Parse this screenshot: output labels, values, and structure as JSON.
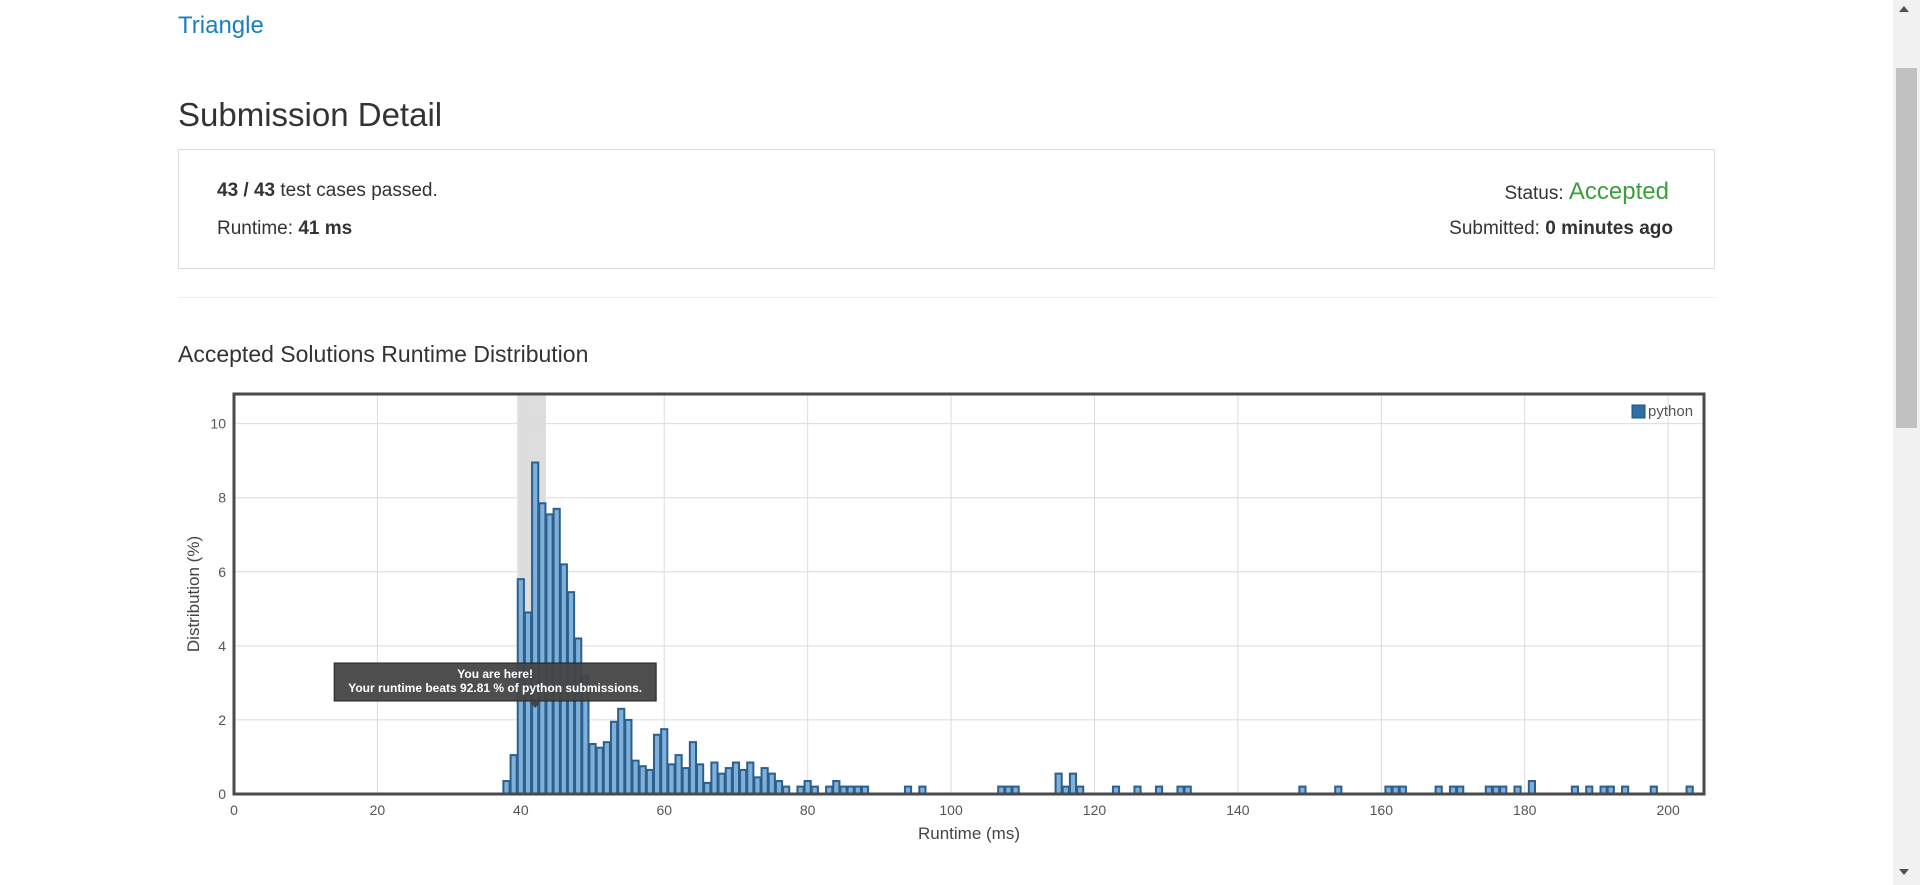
{
  "problem": {
    "title": "Triangle"
  },
  "page": {
    "title": "Submission Detail"
  },
  "submission": {
    "passed": "43 / 43",
    "passed_suffix": " test cases passed.",
    "runtime_label": "Runtime: ",
    "runtime_value": "41 ms",
    "status_label": "Status: ",
    "status_value": "Accepted",
    "submitted_label": "Submitted: ",
    "submitted_value": "0 minutes ago"
  },
  "colors": {
    "accent_link": "#1a7fc1",
    "accepted": "#3a9f3a",
    "bar_fill": "#7fb0d8",
    "bar_stroke": "#2b5f8f",
    "highlight": "#dddddd",
    "tooltip_bg": "#444444"
  },
  "chart_heading": "Accepted Solutions Runtime Distribution",
  "chart_data": {
    "type": "bar",
    "xlabel": "Runtime (ms)",
    "ylabel": "Distribution (%)",
    "xlim": [
      0,
      205
    ],
    "ylim": [
      0,
      10.8
    ],
    "x_ticks": [
      0,
      20,
      40,
      60,
      80,
      100,
      120,
      140,
      160,
      180,
      200
    ],
    "y_ticks": [
      0,
      2,
      4,
      6,
      8,
      10
    ],
    "grid": true,
    "legend_position": "top-right",
    "series": [
      {
        "name": "python",
        "x": [
          38,
          39,
          40,
          41,
          42,
          43,
          44,
          45,
          46,
          47,
          48,
          49,
          50,
          51,
          52,
          53,
          54,
          55,
          56,
          57,
          58,
          59,
          60,
          61,
          62,
          63,
          64,
          65,
          66,
          67,
          68,
          69,
          70,
          71,
          72,
          73,
          74,
          75,
          76,
          77,
          79,
          80,
          81,
          83,
          84,
          85,
          86,
          87,
          88,
          94,
          96,
          107,
          108,
          109,
          115,
          116,
          117,
          118,
          123,
          126,
          129,
          132,
          133,
          149,
          154,
          161,
          162,
          163,
          168,
          170,
          171,
          175,
          176,
          177,
          179,
          181,
          187,
          189,
          191,
          192,
          194,
          198,
          203
        ],
        "values": [
          0.35,
          1.05,
          5.8,
          4.9,
          8.95,
          7.85,
          7.55,
          7.7,
          6.2,
          5.45,
          4.2,
          3.2,
          1.35,
          1.25,
          1.4,
          1.95,
          2.3,
          2.0,
          0.9,
          0.75,
          0.65,
          1.6,
          1.75,
          0.8,
          1.05,
          0.7,
          1.4,
          0.8,
          0.3,
          0.85,
          0.55,
          0.7,
          0.85,
          0.65,
          0.85,
          0.45,
          0.7,
          0.55,
          0.35,
          0.2,
          0.2,
          0.35,
          0.2,
          0.2,
          0.35,
          0.2,
          0.2,
          0.2,
          0.2,
          0.2,
          0.2,
          0.2,
          0.2,
          0.2,
          0.55,
          0.2,
          0.55,
          0.2,
          0.2,
          0.2,
          0.2,
          0.2,
          0.2,
          0.2,
          0.2,
          0.2,
          0.2,
          0.2,
          0.2,
          0.2,
          0.2,
          0.2,
          0.2,
          0.2,
          0.2,
          0.35,
          0.2,
          0.2,
          0.2,
          0.2,
          0.2,
          0.2,
          0.2
        ]
      }
    ],
    "highlight_range": [
      39.5,
      43.5
    ],
    "tooltip": {
      "title": "You are here!",
      "text": "Your runtime beats 92.81 % of python submissions.",
      "x": 42
    }
  }
}
